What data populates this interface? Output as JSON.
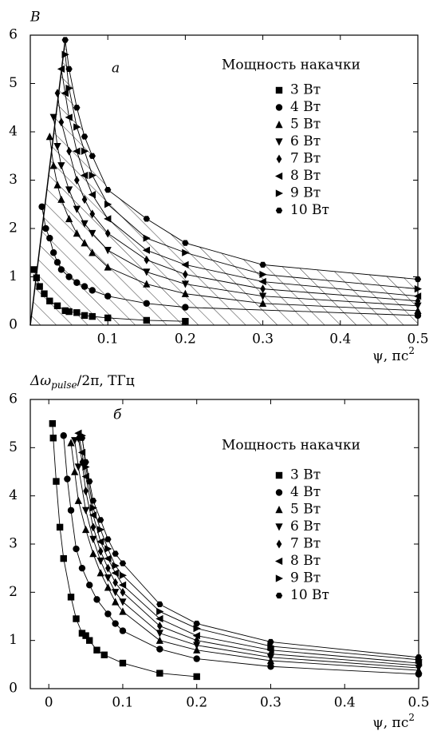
{
  "chart_data": [
    {
      "type": "scatter",
      "panel_label": "а",
      "y_label": "B",
      "x_label": {
        "main": "ψ, пс",
        "sup": "2"
      },
      "legend_title": "Мощность накачки",
      "hatch": true,
      "xlim": [
        0,
        0.5
      ],
      "ylim": [
        0,
        6
      ],
      "xticks": [
        0.1,
        0.2,
        0.3,
        0.4,
        0.5
      ],
      "yticks": [
        0,
        1,
        2,
        3,
        4,
        5,
        6
      ],
      "series": [
        {
          "name": "3 Вт",
          "marker": "square",
          "color": "#000000",
          "x": [
            0.005,
            0.008,
            0.012,
            0.018,
            0.025,
            0.035,
            0.045,
            0.05,
            0.06,
            0.07,
            0.08,
            0.1,
            0.15,
            0.2
          ],
          "values": [
            1.15,
            0.98,
            0.8,
            0.65,
            0.5,
            0.4,
            0.3,
            0.28,
            0.26,
            0.2,
            0.18,
            0.15,
            0.1,
            0.08
          ]
        },
        {
          "name": "4 Вт",
          "marker": "circle",
          "color": "#000000",
          "x": [
            0.015,
            0.02,
            0.025,
            0.03,
            0.035,
            0.04,
            0.05,
            0.06,
            0.07,
            0.08,
            0.1,
            0.15,
            0.2,
            0.5
          ],
          "values": [
            2.45,
            2.0,
            1.8,
            1.5,
            1.3,
            1.15,
            1.0,
            0.88,
            0.8,
            0.72,
            0.6,
            0.45,
            0.37,
            0.2
          ]
        },
        {
          "name": "5 Вт",
          "marker": "triangle-up",
          "color": "#000000",
          "x": [
            0.025,
            0.03,
            0.035,
            0.04,
            0.05,
            0.06,
            0.07,
            0.08,
            0.1,
            0.15,
            0.2,
            0.3,
            0.5
          ],
          "values": [
            3.9,
            3.3,
            2.9,
            2.6,
            2.2,
            1.9,
            1.7,
            1.5,
            1.2,
            0.85,
            0.65,
            0.45,
            0.3
          ]
        },
        {
          "name": "6 Вт",
          "marker": "triangle-down",
          "color": "#000000",
          "x": [
            0.03,
            0.035,
            0.04,
            0.05,
            0.06,
            0.07,
            0.08,
            0.1,
            0.15,
            0.2,
            0.3,
            0.5
          ],
          "values": [
            4.3,
            3.7,
            3.3,
            2.8,
            2.4,
            2.1,
            1.9,
            1.55,
            1.1,
            0.85,
            0.6,
            0.4
          ]
        },
        {
          "name": "7 Вт",
          "marker": "diamond",
          "color": "#000000",
          "x": [
            0.035,
            0.04,
            0.05,
            0.06,
            0.07,
            0.08,
            0.1,
            0.15,
            0.2,
            0.3,
            0.5
          ],
          "values": [
            4.8,
            4.2,
            3.6,
            3.0,
            2.6,
            2.3,
            1.9,
            1.35,
            1.05,
            0.75,
            0.5
          ]
        },
        {
          "name": "8 Вт",
          "marker": "triangle-left",
          "color": "#000000",
          "x": [
            0.04,
            0.045,
            0.05,
            0.06,
            0.07,
            0.08,
            0.1,
            0.15,
            0.2,
            0.3,
            0.5
          ],
          "values": [
            5.3,
            4.8,
            4.3,
            3.6,
            3.1,
            2.7,
            2.2,
            1.55,
            1.25,
            0.9,
            0.6
          ]
        },
        {
          "name": "9 Вт",
          "marker": "triangle-right",
          "color": "#000000",
          "x": [
            0.045,
            0.05,
            0.06,
            0.07,
            0.08,
            0.1,
            0.15,
            0.2,
            0.3,
            0.5
          ],
          "values": [
            5.6,
            4.9,
            4.1,
            3.6,
            3.1,
            2.5,
            1.8,
            1.5,
            1.05,
            0.75
          ]
        },
        {
          "name": "10 Вт",
          "marker": "hexagon",
          "color": "#000000",
          "x": [
            0.045,
            0.05,
            0.06,
            0.07,
            0.08,
            0.1,
            0.15,
            0.2,
            0.3,
            0.5
          ],
          "values": [
            5.9,
            5.3,
            4.5,
            3.9,
            3.5,
            2.8,
            2.2,
            1.7,
            1.25,
            0.95
          ]
        }
      ]
    },
    {
      "type": "scatter",
      "panel_label": "б",
      "y_label": {
        "main": "Δω",
        "sub": "pulse",
        "rest": "/2π, ТГц"
      },
      "x_label": {
        "main": "ψ, пс",
        "sup": "2"
      },
      "legend_title": "Мощность накачки",
      "hatch": false,
      "xlim": [
        -0.025,
        0.5
      ],
      "ylim": [
        0,
        6
      ],
      "xticks": [
        0,
        0.1,
        0.2,
        0.3,
        0.4,
        0.5
      ],
      "yticks": [
        0,
        1,
        2,
        3,
        4,
        5,
        6
      ],
      "series": [
        {
          "name": "3 Вт",
          "marker": "square",
          "color": "#000000",
          "x": [
            0.005,
            0.006,
            0.01,
            0.015,
            0.02,
            0.03,
            0.037,
            0.045,
            0.05,
            0.055,
            0.065,
            0.075,
            0.1,
            0.15,
            0.2
          ],
          "values": [
            5.5,
            5.2,
            4.3,
            3.35,
            2.7,
            1.9,
            1.45,
            1.15,
            1.1,
            1.0,
            0.8,
            0.7,
            0.53,
            0.32,
            0.25
          ]
        },
        {
          "name": "4 Вт",
          "marker": "circle",
          "color": "#000000",
          "x": [
            0.02,
            0.025,
            0.03,
            0.037,
            0.045,
            0.055,
            0.065,
            0.08,
            0.09,
            0.1,
            0.15,
            0.2,
            0.3,
            0.5
          ],
          "values": [
            5.25,
            4.35,
            3.7,
            2.9,
            2.5,
            2.15,
            1.85,
            1.55,
            1.35,
            1.2,
            0.82,
            0.62,
            0.46,
            0.3
          ]
        },
        {
          "name": "5 Вт",
          "marker": "triangle-up",
          "color": "#000000",
          "x": [
            0.03,
            0.035,
            0.04,
            0.05,
            0.06,
            0.07,
            0.08,
            0.09,
            0.1,
            0.15,
            0.2,
            0.3,
            0.5
          ],
          "values": [
            5.1,
            4.5,
            3.9,
            3.3,
            2.8,
            2.4,
            2.1,
            1.8,
            1.6,
            1.0,
            0.8,
            0.58,
            0.38
          ]
        },
        {
          "name": "6 Вт",
          "marker": "triangle-down",
          "color": "#000000",
          "x": [
            0.035,
            0.04,
            0.05,
            0.06,
            0.07,
            0.08,
            0.09,
            0.1,
            0.15,
            0.2,
            0.3,
            0.5
          ],
          "values": [
            5.15,
            4.6,
            3.7,
            3.1,
            2.65,
            2.3,
            2.0,
            1.8,
            1.15,
            0.9,
            0.65,
            0.43
          ]
        },
        {
          "name": "7 Вт",
          "marker": "diamond",
          "color": "#000000",
          "x": [
            0.04,
            0.045,
            0.05,
            0.06,
            0.07,
            0.08,
            0.09,
            0.1,
            0.15,
            0.2,
            0.3,
            0.5
          ],
          "values": [
            5.2,
            4.7,
            4.1,
            3.35,
            2.85,
            2.5,
            2.2,
            2.0,
            1.3,
            1.0,
            0.72,
            0.48
          ]
        },
        {
          "name": "8 Вт",
          "marker": "triangle-left",
          "color": "#000000",
          "x": [
            0.04,
            0.045,
            0.05,
            0.06,
            0.07,
            0.08,
            0.09,
            0.1,
            0.15,
            0.2,
            0.3,
            0.5
          ],
          "values": [
            5.3,
            4.9,
            4.4,
            3.6,
            3.05,
            2.7,
            2.4,
            2.15,
            1.45,
            1.1,
            0.8,
            0.53
          ]
        },
        {
          "name": "9 Вт",
          "marker": "triangle-right",
          "color": "#000000",
          "x": [
            0.045,
            0.05,
            0.06,
            0.07,
            0.08,
            0.09,
            0.1,
            0.15,
            0.2,
            0.3,
            0.5
          ],
          "values": [
            5.25,
            4.6,
            3.75,
            3.3,
            2.9,
            2.55,
            2.35,
            1.6,
            1.25,
            0.88,
            0.6
          ]
        },
        {
          "name": "10 Вт",
          "marker": "hexagon",
          "color": "#000000",
          "x": [
            0.045,
            0.05,
            0.055,
            0.06,
            0.07,
            0.08,
            0.09,
            0.1,
            0.15,
            0.2,
            0.3,
            0.5
          ],
          "values": [
            5.2,
            4.7,
            4.3,
            3.9,
            3.5,
            3.1,
            2.8,
            2.6,
            1.75,
            1.35,
            0.97,
            0.65
          ]
        }
      ]
    }
  ]
}
